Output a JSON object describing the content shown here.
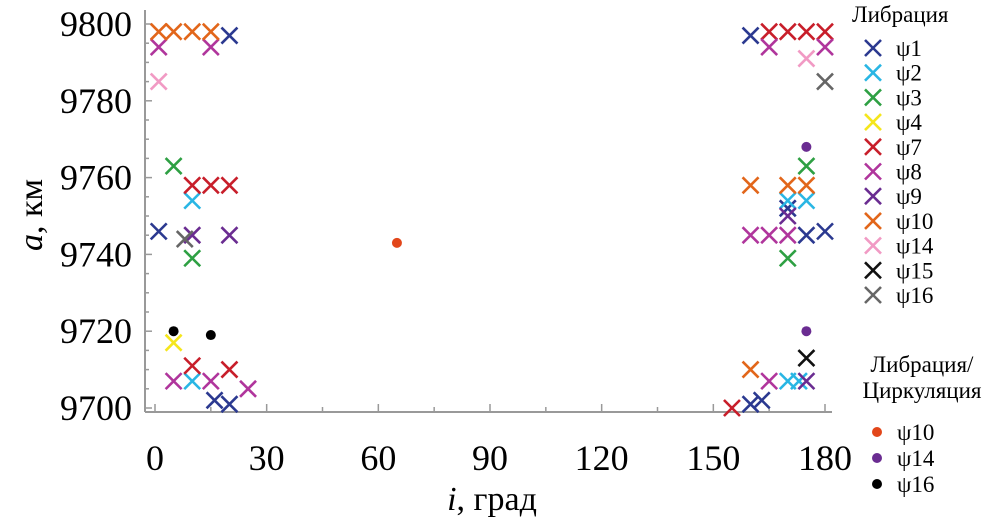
{
  "chart_data": {
    "type": "scatter",
    "xlabel_var": "i",
    "xlabel_unit": ", град",
    "ylabel_var": "a",
    "ylabel_unit": ", км",
    "xlim": [
      0,
      180
    ],
    "ylim": [
      9700,
      9800
    ],
    "x_ticks": [
      0,
      30,
      60,
      90,
      120,
      150,
      180
    ],
    "y_ticks": [
      9700,
      9720,
      9740,
      9760,
      9780,
      9800
    ],
    "grid": false,
    "legend_position": "right",
    "legend_groups": [
      {
        "title": "Либрация",
        "marker": "x",
        "entries": [
          "ψ1",
          "ψ2",
          "ψ3",
          "ψ4",
          "ψ7",
          "ψ8",
          "ψ9",
          "ψ10",
          "ψ14",
          "ψ15",
          "ψ16"
        ]
      },
      {
        "title": "Либрация/\nЦиркуляция",
        "marker": "dot",
        "entries": [
          "ψ10",
          "ψ14",
          "ψ16"
        ]
      }
    ],
    "series": [
      {
        "name": "ψ1",
        "marker": "x",
        "color": "#2b3990",
        "points": [
          [
            20,
            9797
          ],
          [
            1,
            9746
          ],
          [
            16,
            9702
          ],
          [
            20,
            9701
          ],
          [
            160,
            9797
          ],
          [
            170,
            9752
          ],
          [
            160,
            9701
          ],
          [
            163,
            9702
          ],
          [
            175,
            9745
          ],
          [
            180,
            9746
          ]
        ]
      },
      {
        "name": "ψ2",
        "marker": "x",
        "color": "#29b6e4",
        "points": [
          [
            10,
            9754
          ],
          [
            10,
            9707
          ],
          [
            170,
            9754
          ],
          [
            175,
            9754
          ],
          [
            170,
            9707
          ],
          [
            173,
            9707
          ]
        ]
      },
      {
        "name": "ψ3",
        "marker": "x",
        "color": "#2ea043",
        "points": [
          [
            5,
            9763
          ],
          [
            10,
            9739
          ],
          [
            175,
            9763
          ],
          [
            170,
            9739
          ]
        ]
      },
      {
        "name": "ψ4",
        "marker": "x",
        "color": "#f5e61c",
        "points": [
          [
            5,
            9717
          ]
        ]
      },
      {
        "name": "ψ7",
        "marker": "x",
        "color": "#c81e2a",
        "points": [
          [
            10,
            9758
          ],
          [
            15,
            9758
          ],
          [
            20,
            9758
          ],
          [
            10,
            9711
          ],
          [
            20,
            9710
          ],
          [
            165,
            9798
          ],
          [
            170,
            9798
          ],
          [
            175,
            9798
          ],
          [
            180,
            9798
          ],
          [
            155,
            9700
          ]
        ]
      },
      {
        "name": "ψ8",
        "marker": "x",
        "color": "#b0359c",
        "points": [
          [
            1,
            9794
          ],
          [
            15,
            9794
          ],
          [
            5,
            9707
          ],
          [
            15,
            9707
          ],
          [
            25,
            9705
          ],
          [
            165,
            9794
          ],
          [
            160,
            9745
          ],
          [
            165,
            9745
          ],
          [
            170,
            9745
          ],
          [
            180,
            9794
          ],
          [
            165,
            9707
          ]
        ]
      },
      {
        "name": "ψ9",
        "marker": "x",
        "color": "#6a2c91",
        "points": [
          [
            10,
            9745
          ],
          [
            20,
            9745
          ],
          [
            170,
            9750
          ],
          [
            175,
            9707
          ]
        ]
      },
      {
        "name": "ψ10",
        "marker": "x",
        "color": "#e2661a",
        "points": [
          [
            1,
            9798
          ],
          [
            5,
            9798
          ],
          [
            10,
            9798
          ],
          [
            15,
            9798
          ],
          [
            160,
            9758
          ],
          [
            170,
            9758
          ],
          [
            175,
            9758
          ],
          [
            160,
            9710
          ]
        ]
      },
      {
        "name": "ψ14",
        "marker": "x",
        "color": "#f19ac4",
        "points": [
          [
            1,
            9785
          ],
          [
            175,
            9791
          ]
        ]
      },
      {
        "name": "ψ15",
        "marker": "x",
        "color": "#111111",
        "points": [
          [
            175,
            9713
          ]
        ]
      },
      {
        "name": "ψ16",
        "marker": "x",
        "color": "#666666",
        "points": [
          [
            8,
            9744
          ],
          [
            180,
            9785
          ]
        ]
      },
      {
        "name": "ψ10",
        "marker": "dot",
        "color": "#e2461a",
        "points": [
          [
            65,
            9743
          ]
        ]
      },
      {
        "name": "ψ14",
        "marker": "dot",
        "color": "#6a2c91",
        "points": [
          [
            175,
            9768
          ],
          [
            175,
            9720
          ]
        ]
      },
      {
        "name": "ψ16",
        "marker": "dot",
        "color": "#000000",
        "points": [
          [
            5,
            9720
          ],
          [
            15,
            9719
          ]
        ]
      }
    ]
  }
}
